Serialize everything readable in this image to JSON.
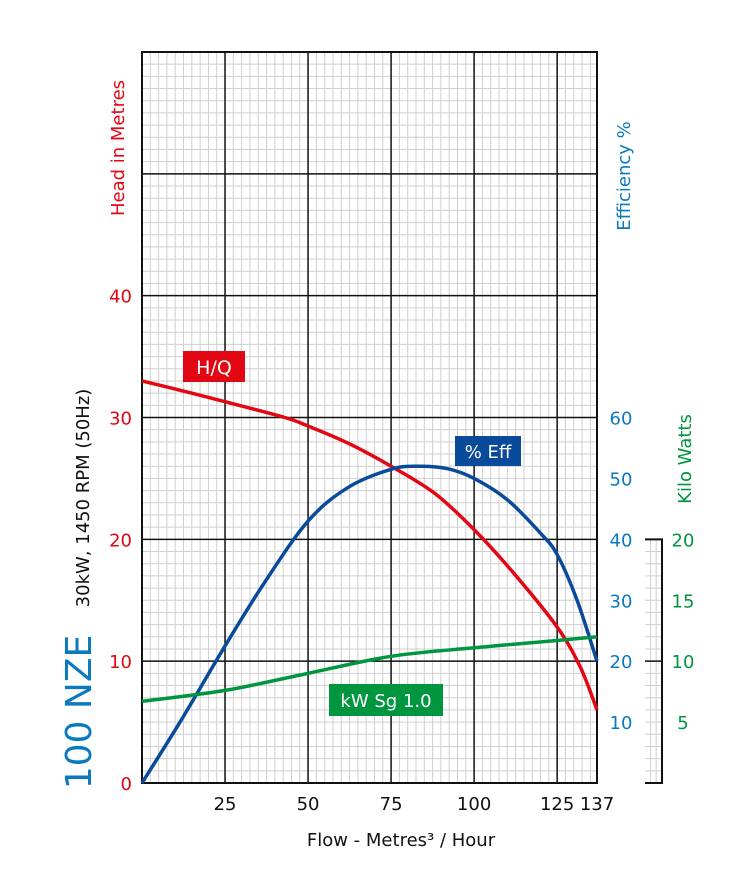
{
  "chart_data": {
    "type": "line",
    "model": "100 NZE",
    "subtitle": "30kW, 1450 RPM (50Hz)",
    "xlabel": "Flow - Metres³ / Hour",
    "xlim": [
      0,
      137
    ],
    "x_ticks": [
      "25",
      "50",
      "75",
      "100",
      "125",
      "137"
    ],
    "x_tick_values": [
      25,
      50,
      75,
      100,
      125,
      137
    ],
    "axes": {
      "head": {
        "label": "Head in Metres",
        "range": [
          0,
          60
        ],
        "ticks": [
          "0",
          "10",
          "20",
          "30",
          "40"
        ],
        "tick_values": [
          0,
          10,
          20,
          30,
          40
        ],
        "color": "#e30613"
      },
      "efficiency": {
        "label": "Efficiency %",
        "range": [
          0,
          120
        ],
        "ticks": [
          "10",
          "20",
          "30",
          "40",
          "50",
          "60"
        ],
        "tick_values": [
          10,
          20,
          30,
          40,
          50,
          60
        ],
        "color": "#0a7ac0"
      },
      "kilowatts": {
        "label": "Kilo Watts",
        "range": [
          0,
          20
        ],
        "ticks": [
          "5",
          "10",
          "15",
          "20"
        ],
        "tick_values": [
          5,
          10,
          15,
          20
        ],
        "color": "#009640"
      }
    },
    "grid": true,
    "series": [
      {
        "name": "H/Q",
        "axis": "head",
        "color": "#e30613",
        "x": [
          0,
          12,
          25,
          43,
          50,
          62,
          75,
          88,
          100,
          112,
          125,
          132,
          137
        ],
        "y": [
          33,
          32.2,
          31.3,
          30,
          29.3,
          27.9,
          26,
          23.8,
          20.8,
          17.2,
          12.8,
          9.5,
          6
        ]
      },
      {
        "name": "% Eff",
        "axis": "efficiency",
        "color": "#0a4a9a",
        "x": [
          0,
          12,
          25,
          37,
          50,
          62,
          75,
          83,
          92,
          100,
          110,
          120,
          125,
          131,
          137
        ],
        "y": [
          0,
          10.5,
          22.5,
          33,
          43,
          48.5,
          51.5,
          52,
          51.6,
          50,
          46.5,
          41,
          37.5,
          30,
          20
        ]
      },
      {
        "name": "kW Sg 1.0",
        "axis": "kilowatts",
        "color": "#009640",
        "x": [
          0,
          25,
          50,
          75,
          100,
          125,
          137
        ],
        "y": [
          6.7,
          7.6,
          9.0,
          10.4,
          11.1,
          11.7,
          12.0
        ]
      }
    ]
  }
}
